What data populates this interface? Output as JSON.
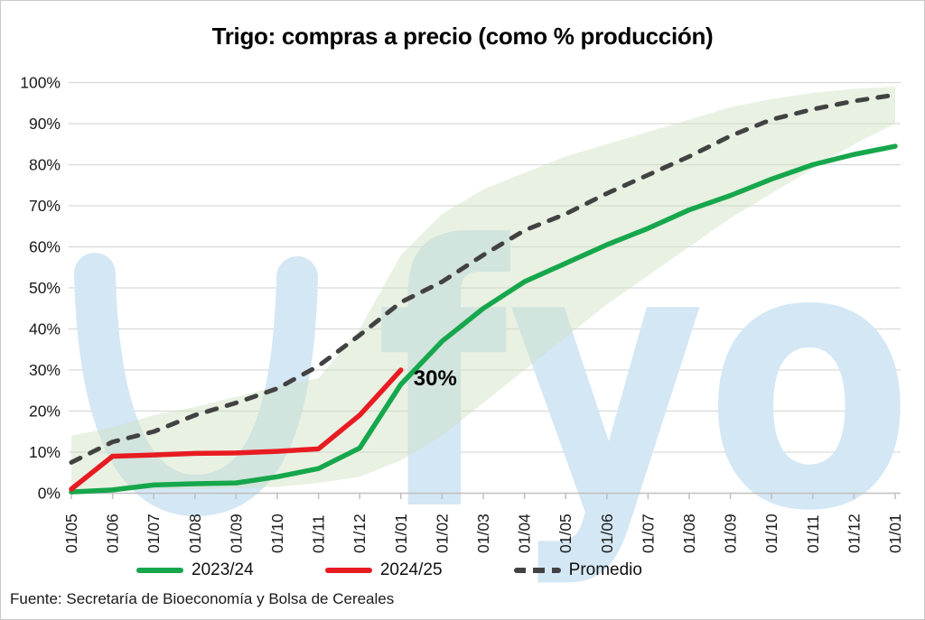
{
  "source": "Fuente: Secretaría de Bioeconomía y Bolsa de Cereales",
  "watermark": {
    "text": "fyo",
    "color": "#d4e7f4"
  },
  "chart_data": {
    "type": "line",
    "title": "Trigo: compras a precio (como % producción)",
    "categories": [
      "01/05",
      "01/06",
      "01/07",
      "01/08",
      "01/09",
      "01/10",
      "01/11",
      "01/12",
      "01/01",
      "01/02",
      "01/03",
      "01/04",
      "01/05",
      "01/06",
      "01/07",
      "01/08",
      "01/09",
      "01/10",
      "01/11",
      "01/12",
      "01/01"
    ],
    "y_ticks": [
      "0%",
      "10%",
      "20%",
      "30%",
      "40%",
      "50%",
      "60%",
      "70%",
      "80%",
      "90%",
      "100%"
    ],
    "ylim": [
      0,
      100
    ],
    "grid": true,
    "legend_position": "bottom",
    "series": [
      {
        "name": "2023/24",
        "color": "#16a74c",
        "style": "solid",
        "values": [
          0.3,
          0.8,
          2,
          2.3,
          2.5,
          4,
          6,
          11,
          26.5,
          37,
          45,
          51.5,
          56,
          60.5,
          64.5,
          69,
          72.5,
          76.5,
          80,
          82.5,
          84.5
        ]
      },
      {
        "name": "2024/25",
        "color": "#e81b22",
        "style": "solid",
        "values": [
          1,
          9,
          9.3,
          9.7,
          9.8,
          10.2,
          10.8,
          19,
          30
        ]
      },
      {
        "name": "Promedio",
        "color": "#424242",
        "style": "dashed",
        "values": [
          7.5,
          12.5,
          15,
          19,
          22,
          25.5,
          31,
          38.5,
          46.5,
          51.5,
          58,
          64,
          68,
          73,
          77.5,
          82,
          87,
          91,
          93.5,
          95.5,
          97
        ]
      }
    ],
    "band": {
      "upper": [
        14,
        16,
        19,
        21,
        23.5,
        26,
        28,
        40,
        58,
        68,
        74,
        78,
        82,
        85,
        88,
        91,
        94,
        96,
        97.5,
        98.5,
        99
      ],
      "lower": [
        0.5,
        0.8,
        1,
        1,
        1.2,
        1.5,
        2.5,
        4,
        8,
        14,
        22,
        30,
        38,
        46,
        53,
        60,
        67,
        73,
        79,
        85,
        90
      ],
      "color": "#cfdfc0"
    },
    "annotation": {
      "text": "30%",
      "series": "2024/25",
      "x_index": 8,
      "value": 30
    },
    "colors": {
      "grid": "#d9d9d9",
      "axis": "#bfbfbf",
      "text": "#1a1a1a"
    }
  }
}
